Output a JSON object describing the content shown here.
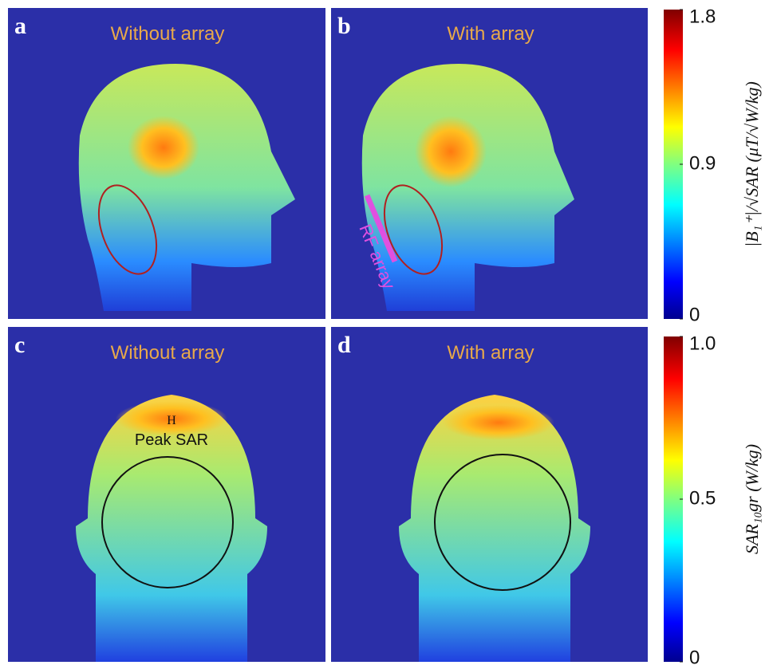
{
  "panels": [
    {
      "letter": "a",
      "title": "Without array"
    },
    {
      "letter": "b",
      "title": "With array",
      "annotation": "RF array"
    },
    {
      "letter": "c",
      "title": "Without array",
      "marker": "H",
      "annotation": "Peak SAR"
    },
    {
      "letter": "d",
      "title": "With array"
    }
  ],
  "colorbars": [
    {
      "label": "|B₁⁺|/√SAR (μT/√W/kg)",
      "lim": [
        0,
        1.8
      ],
      "ticks": [
        0,
        0.9,
        1.8
      ]
    },
    {
      "label": "SAR₁₀gr (W/kg)",
      "lim": [
        0,
        1
      ],
      "ticks": [
        0,
        0.5,
        {
          "value": 1,
          "label": "1.0"
        }
      ]
    }
  ]
}
